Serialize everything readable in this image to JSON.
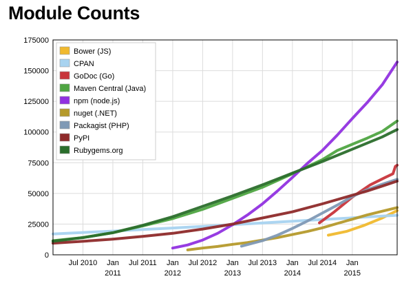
{
  "page": {
    "title": "Module Counts"
  },
  "chart_data": {
    "type": "line",
    "title": "Module Counts",
    "xlabel": "",
    "ylabel": "",
    "xlim": [
      2010.0,
      2015.75
    ],
    "ylim": [
      0,
      175000
    ],
    "y_ticks": [
      0,
      25000,
      50000,
      75000,
      100000,
      125000,
      150000,
      175000
    ],
    "y_tick_labels": [
      "0",
      "25000",
      "50000",
      "75000",
      "100000",
      "125000",
      "150000",
      "175000"
    ],
    "x_ticks": [
      {
        "x": 2010.5,
        "line1": "Jul 2010",
        "line2": ""
      },
      {
        "x": 2011.0,
        "line1": "Jan",
        "line2": "2011"
      },
      {
        "x": 2011.5,
        "line1": "Jul 2011",
        "line2": ""
      },
      {
        "x": 2012.0,
        "line1": "Jan",
        "line2": "2012"
      },
      {
        "x": 2012.5,
        "line1": "Jul 2012",
        "line2": ""
      },
      {
        "x": 2013.0,
        "line1": "Jan",
        "line2": "2013"
      },
      {
        "x": 2013.5,
        "line1": "Jul 2013",
        "line2": ""
      },
      {
        "x": 2014.0,
        "line1": "Jan",
        "line2": "2014"
      },
      {
        "x": 2014.5,
        "line1": "Jul 2014",
        "line2": ""
      },
      {
        "x": 2015.0,
        "line1": "Jan",
        "line2": "2015"
      }
    ],
    "grid": true,
    "legend_position": "top-left",
    "series": [
      {
        "name": "Bower (JS)",
        "color": "#f0b92e",
        "points": [
          [
            2014.6,
            16000
          ],
          [
            2014.9,
            19000
          ],
          [
            2015.2,
            24000
          ],
          [
            2015.5,
            30000
          ],
          [
            2015.75,
            36000
          ]
        ]
      },
      {
        "name": "CPAN",
        "color": "#a8d3f0",
        "points": [
          [
            2010.0,
            17000
          ],
          [
            2010.5,
            18200
          ],
          [
            2011.0,
            19300
          ],
          [
            2011.5,
            20600
          ],
          [
            2012.0,
            21800
          ],
          [
            2012.5,
            23100
          ],
          [
            2013.0,
            24500
          ],
          [
            2013.5,
            25900
          ],
          [
            2014.0,
            27300
          ],
          [
            2014.5,
            28700
          ],
          [
            2015.0,
            30100
          ],
          [
            2015.5,
            31500
          ],
          [
            2015.75,
            32200
          ]
        ]
      },
      {
        "name": "GoDoc (Go)",
        "color": "#c8353b",
        "points": [
          [
            2014.45,
            26000
          ],
          [
            2014.7,
            35000
          ],
          [
            2015.0,
            47000
          ],
          [
            2015.3,
            57000
          ],
          [
            2015.55,
            63000
          ],
          [
            2015.68,
            66000
          ],
          [
            2015.72,
            72000
          ],
          [
            2015.75,
            73000
          ]
        ]
      },
      {
        "name": "Maven Central (Java)",
        "color": "#4fa542",
        "points": [
          [
            2010.0,
            11500
          ],
          [
            2010.5,
            14000
          ],
          [
            2011.0,
            18000
          ],
          [
            2011.5,
            23500
          ],
          [
            2012.0,
            29500
          ],
          [
            2012.5,
            37000
          ],
          [
            2013.0,
            46000
          ],
          [
            2013.5,
            55000
          ],
          [
            2014.0,
            66000
          ],
          [
            2014.5,
            77500
          ],
          [
            2014.75,
            85000
          ],
          [
            2015.0,
            90000
          ],
          [
            2015.25,
            95000
          ],
          [
            2015.5,
            100500
          ],
          [
            2015.75,
            109000
          ]
        ]
      },
      {
        "name": "npm (node.js)",
        "color": "#9131e0",
        "points": [
          [
            2012.0,
            5500
          ],
          [
            2012.25,
            8000
          ],
          [
            2012.5,
            12000
          ],
          [
            2012.75,
            17500
          ],
          [
            2013.0,
            24500
          ],
          [
            2013.25,
            32500
          ],
          [
            2013.5,
            41500
          ],
          [
            2013.75,
            52000
          ],
          [
            2014.0,
            63000
          ],
          [
            2014.25,
            74500
          ],
          [
            2014.5,
            85000
          ],
          [
            2014.75,
            97500
          ],
          [
            2015.0,
            111000
          ],
          [
            2015.25,
            124000
          ],
          [
            2015.5,
            138500
          ],
          [
            2015.75,
            157000
          ]
        ]
      },
      {
        "name": "nuget (.NET)",
        "color": "#b59a2c",
        "points": [
          [
            2012.25,
            4000
          ],
          [
            2012.5,
            5500
          ],
          [
            2012.75,
            6800
          ],
          [
            2013.0,
            8500
          ],
          [
            2013.25,
            10000
          ],
          [
            2013.5,
            12000
          ],
          [
            2013.75,
            14000
          ],
          [
            2014.0,
            16500
          ],
          [
            2014.25,
            19000
          ],
          [
            2014.5,
            22000
          ],
          [
            2014.75,
            25500
          ],
          [
            2015.0,
            29000
          ],
          [
            2015.25,
            32500
          ],
          [
            2015.5,
            35500
          ],
          [
            2015.75,
            38500
          ]
        ]
      },
      {
        "name": "Packagist (PHP)",
        "color": "#7f99b5",
        "points": [
          [
            2013.15,
            7000
          ],
          [
            2013.5,
            11500
          ],
          [
            2013.75,
            16000
          ],
          [
            2014.0,
            21500
          ],
          [
            2014.25,
            27500
          ],
          [
            2014.5,
            34000
          ],
          [
            2014.75,
            40500
          ],
          [
            2015.0,
            47500
          ],
          [
            2015.25,
            53000
          ],
          [
            2015.5,
            57500
          ],
          [
            2015.75,
            61500
          ]
        ]
      },
      {
        "name": "PyPI",
        "color": "#8e2a2a",
        "points": [
          [
            2010.0,
            9500
          ],
          [
            2010.5,
            11000
          ],
          [
            2011.0,
            12800
          ],
          [
            2011.5,
            15000
          ],
          [
            2012.0,
            17500
          ],
          [
            2012.5,
            21000
          ],
          [
            2013.0,
            25000
          ],
          [
            2013.5,
            30000
          ],
          [
            2014.0,
            35000
          ],
          [
            2014.5,
            41500
          ],
          [
            2015.0,
            48500
          ],
          [
            2015.25,
            52000
          ],
          [
            2015.5,
            56000
          ],
          [
            2015.75,
            60000
          ]
        ]
      },
      {
        "name": "Rubygems.org",
        "color": "#2b6e2c",
        "points": [
          [
            2010.0,
            11000
          ],
          [
            2010.5,
            14000
          ],
          [
            2011.0,
            18000
          ],
          [
            2011.5,
            24000
          ],
          [
            2012.0,
            31000
          ],
          [
            2012.5,
            39500
          ],
          [
            2013.0,
            48000
          ],
          [
            2013.5,
            57000
          ],
          [
            2014.0,
            66500
          ],
          [
            2014.5,
            76000
          ],
          [
            2015.0,
            86000
          ],
          [
            2015.5,
            96000
          ],
          [
            2015.75,
            102000
          ]
        ]
      }
    ]
  }
}
